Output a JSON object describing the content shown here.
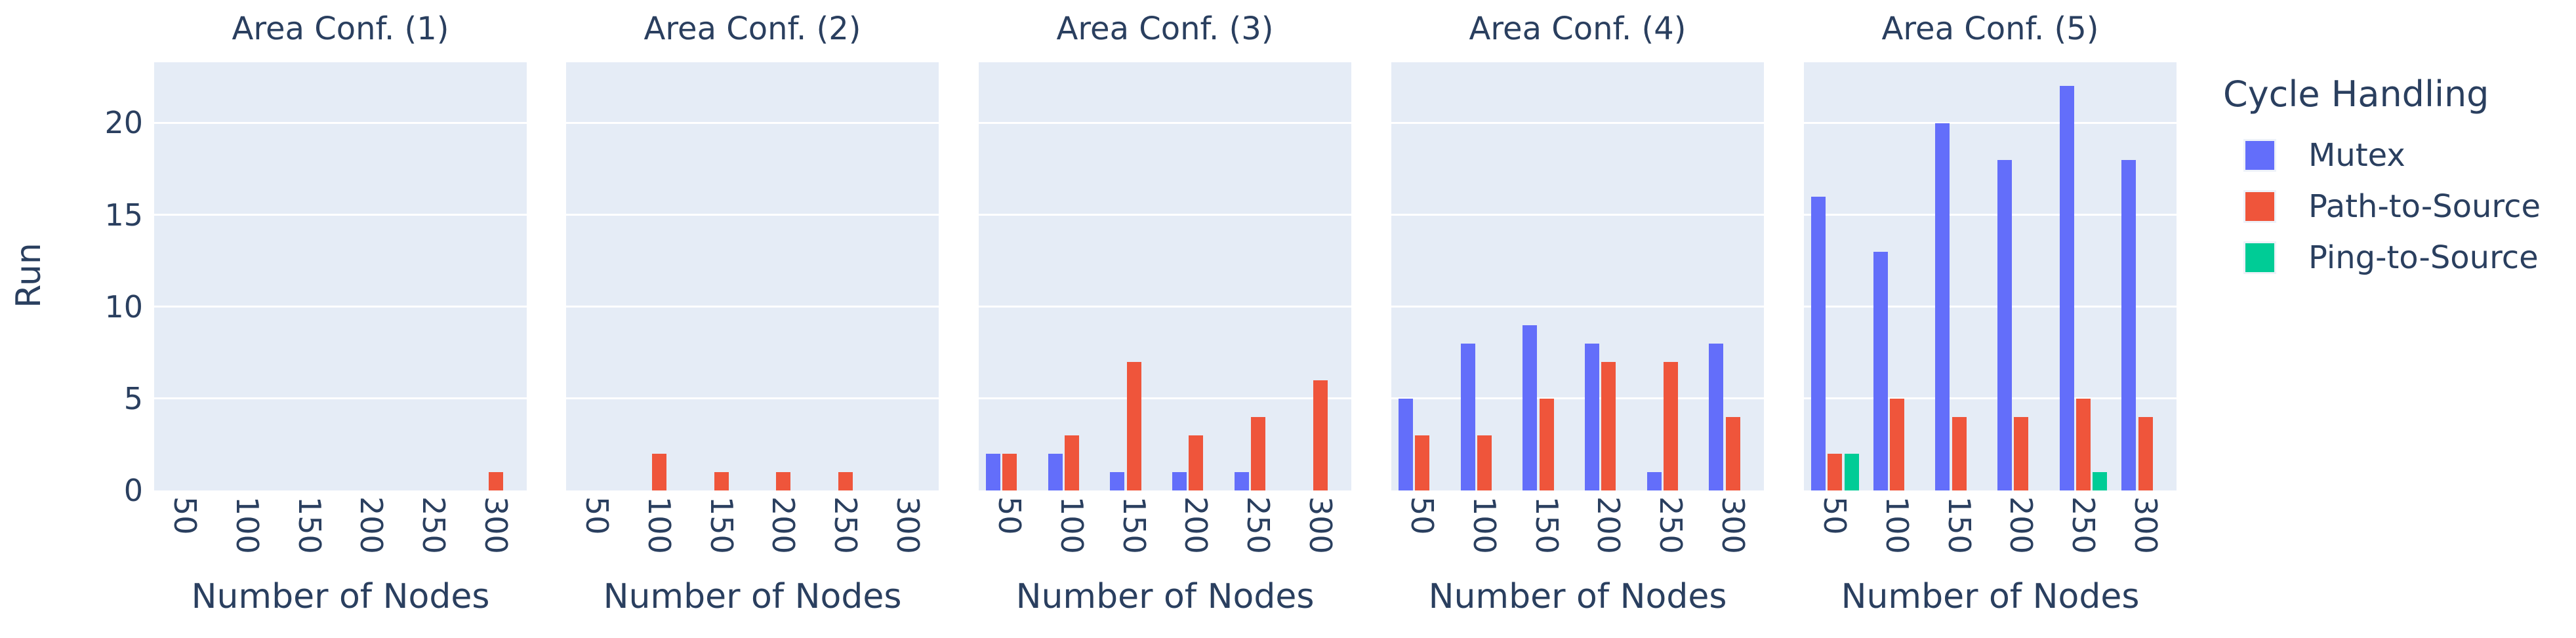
{
  "figure": {
    "y_axis_title": "Run",
    "x_axis_title": "Number of Nodes",
    "legend_title": "Cycle Handling"
  },
  "colors": {
    "page_background": "#ffffff",
    "plot_background": "#e5ecf6",
    "gridline": "#ffffff",
    "text": "#2a3f5f",
    "mutex_blue": "#636efa",
    "path_to_source_red": "#ef553b",
    "ping_to_source_green": "#00cc96"
  },
  "chart_data": {
    "type": "bar",
    "barmode": "group",
    "title": "",
    "xlabel": "Number of Nodes",
    "ylabel": "Run",
    "ylim": [
      0,
      23.3
    ],
    "yticks": [
      0,
      5,
      10,
      15,
      20
    ],
    "grid": true,
    "legend_title": "Cycle Handling",
    "legend_position": "right",
    "categories": [
      "50",
      "100",
      "150",
      "200",
      "250",
      "300"
    ],
    "facet_titles": [
      "Area Conf. (1)",
      "Area Conf. (2)",
      "Area Conf. (3)",
      "Area Conf. (4)",
      "Area Conf. (5)"
    ],
    "series": [
      {
        "name": "Mutex",
        "color": "#636efa",
        "facet_values": [
          [
            0,
            0,
            0,
            0,
            0,
            0
          ],
          [
            0,
            0,
            0,
            0,
            0,
            0
          ],
          [
            2,
            2,
            1,
            1,
            1,
            0
          ],
          [
            5,
            8,
            9,
            8,
            1,
            8
          ],
          [
            16,
            13,
            20,
            18,
            22,
            18
          ]
        ]
      },
      {
        "name": "Path-to-Source",
        "color": "#ef553b",
        "facet_values": [
          [
            0,
            0,
            0,
            0,
            0,
            1
          ],
          [
            0,
            2,
            1,
            1,
            1,
            0
          ],
          [
            2,
            3,
            7,
            3,
            4,
            6
          ],
          [
            3,
            3,
            5,
            7,
            7,
            4
          ],
          [
            2,
            5,
            4,
            4,
            5,
            4
          ]
        ]
      },
      {
        "name": "Ping-to-Source",
        "color": "#00cc96",
        "facet_values": [
          [
            0,
            0,
            0,
            0,
            0,
            0
          ],
          [
            0,
            0,
            0,
            0,
            0,
            0
          ],
          [
            0,
            0,
            0,
            0,
            0,
            0
          ],
          [
            0,
            0,
            0,
            0,
            0,
            0
          ],
          [
            2,
            0,
            0,
            0,
            1,
            0
          ]
        ]
      }
    ]
  }
}
